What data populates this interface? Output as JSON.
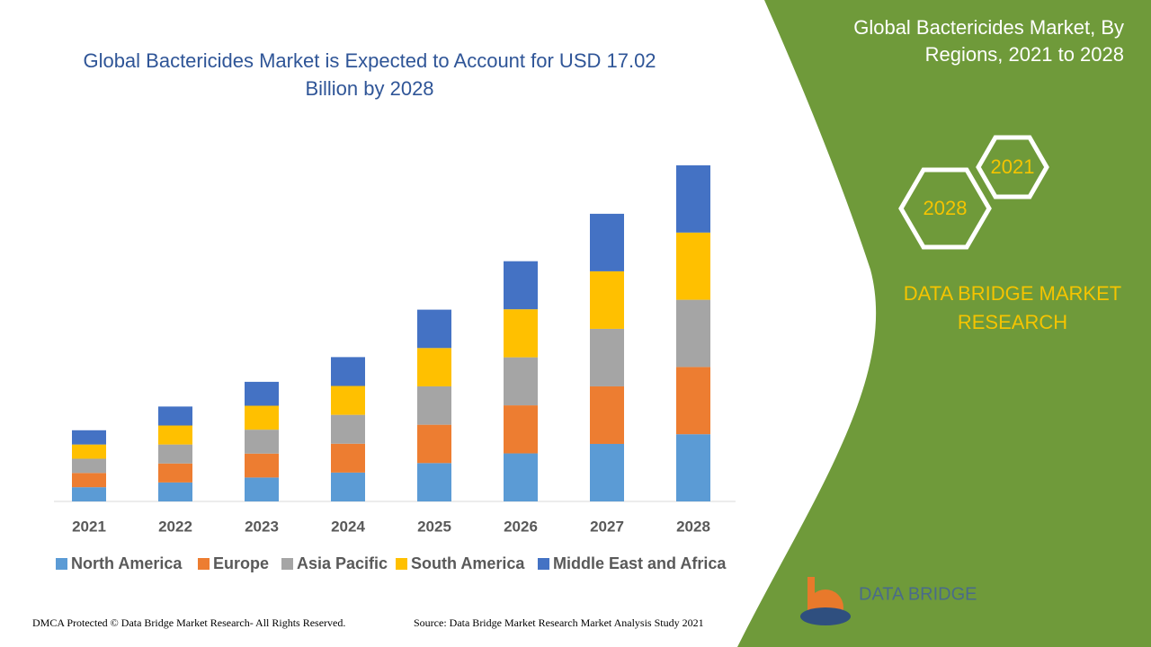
{
  "chart_data": {
    "type": "bar",
    "stacked": true,
    "title": "Global Bactericides Market is Expected to Account for USD 17.02 Billion by 2028",
    "categories": [
      "2021",
      "2022",
      "2023",
      "2024",
      "2025",
      "2026",
      "2027",
      "2028"
    ],
    "series": [
      {
        "name": "North America",
        "color": "#5b9bd5",
        "values": [
          0.72,
          0.96,
          1.21,
          1.46,
          1.94,
          2.43,
          2.91,
          3.4
        ]
      },
      {
        "name": "Europe",
        "color": "#ed7d31",
        "values": [
          0.72,
          0.96,
          1.21,
          1.46,
          1.94,
          2.43,
          2.91,
          3.4
        ]
      },
      {
        "name": "Asia Pacific",
        "color": "#a5a5a5",
        "values": [
          0.72,
          0.96,
          1.21,
          1.46,
          1.94,
          2.43,
          2.91,
          3.4
        ]
      },
      {
        "name": "South America",
        "color": "#ffc000",
        "values": [
          0.72,
          0.96,
          1.21,
          1.46,
          1.94,
          2.43,
          2.91,
          3.4
        ]
      },
      {
        "name": "Middle East and Africa",
        "color": "#4472c4",
        "values": [
          0.72,
          0.96,
          1.21,
          1.46,
          1.94,
          2.43,
          2.91,
          3.4
        ]
      }
    ],
    "ylim": [
      0,
      17.5
    ],
    "grid": false,
    "legend": "bottom"
  },
  "side_panel": {
    "title": "Global Bactericides Market, By Regions, 2021 to 2028",
    "hex_labels": [
      "2021",
      "2028"
    ],
    "brand": "DATA BRIDGE MARKET RESEARCH"
  },
  "footer": {
    "copyright": "DMCA Protected © Data Bridge Market Research- All Rights Reserved.",
    "source": "Source: Data Bridge Market Research Market Analysis Study 2021"
  },
  "logo": {
    "text": "DATA BRIDGE"
  }
}
